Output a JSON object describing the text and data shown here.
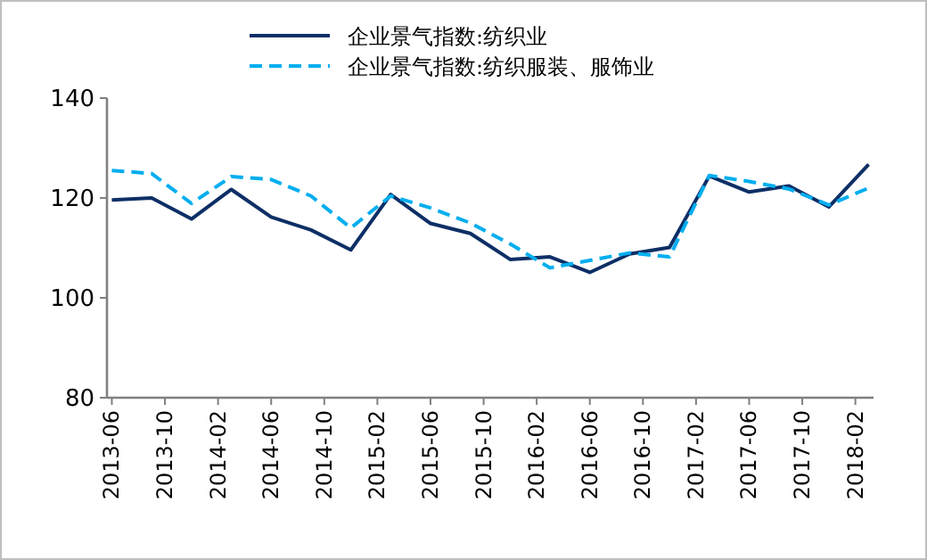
{
  "chart_data": {
    "type": "line",
    "x": [
      "2013-06",
      "2013-09",
      "2013-12",
      "2014-03",
      "2014-06",
      "2014-09",
      "2014-12",
      "2015-03",
      "2015-06",
      "2015-09",
      "2015-12",
      "2016-03",
      "2016-06",
      "2016-09",
      "2016-12",
      "2017-03",
      "2017-06",
      "2017-09",
      "2017-12",
      "2018-03"
    ],
    "series": [
      {
        "name": "企业景气指数:纺织业",
        "color": "#0d2f66",
        "line_style": "solid",
        "values": [
          119.6,
          120,
          115.8,
          121.7,
          116.2,
          113.6,
          109.6,
          120.7,
          114.9,
          112.9,
          107.7,
          108.2,
          105.1,
          108.8,
          110.1,
          124.4,
          121.2,
          122.4,
          118.2,
          126.7
        ]
      },
      {
        "name": "企业景气指数:纺织服装、服饰业",
        "color": "#00aeef",
        "line_style": "dashed",
        "values": [
          125.5,
          124.9,
          118.9,
          124.3,
          123.7,
          120.4,
          114,
          120.4,
          118,
          115,
          110.8,
          106,
          107.5,
          109,
          108.2,
          124.5,
          123.3,
          121.8,
          118.6,
          122
        ]
      }
    ],
    "xlim": [
      "2013-05-20",
      "2018-03-12"
    ],
    "xticks": [
      "2013-06",
      "2013-10",
      "2014-02",
      "2014-06",
      "2014-10",
      "2015-02",
      "2015-06",
      "2015-10",
      "2016-02",
      "2016-06",
      "2016-10",
      "2017-02",
      "2017-06",
      "2017-10",
      "2018-02"
    ],
    "ylim": [
      80,
      140
    ],
    "yticks": [
      80,
      100,
      120,
      140
    ],
    "grid": false,
    "legend": "top",
    "marker": "none"
  }
}
